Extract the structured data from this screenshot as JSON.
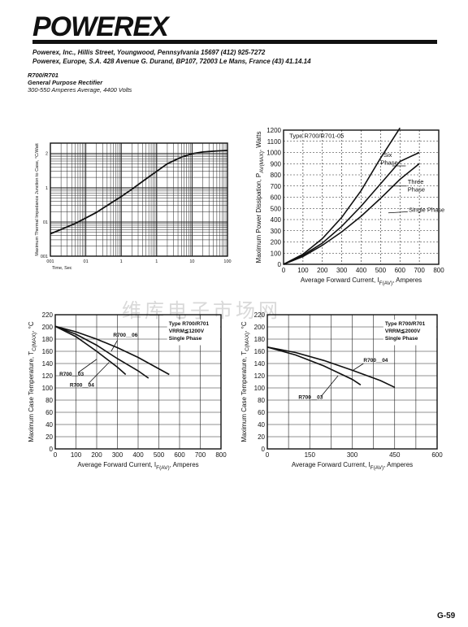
{
  "header": {
    "logo_text": "POWEREX",
    "address_us": "Powerex, Inc., Hillis Street, Youngwood, Pennsylvania 15697 (412) 925-7272",
    "address_eu": "Powerex, Europe, S.A. 428 Avenue G. Durand, BP107, 72003 Le Mans, France (43) 41.14.14"
  },
  "product": {
    "part": "R700/R701",
    "name": "General Purpose Rectifier",
    "rating": "300-550 Amperes Average, 4400 Volts"
  },
  "watermark": "维库电子市场网",
  "page_number": "G-59",
  "chart_data": [
    {
      "id": "thermal",
      "type": "line",
      "xscale": "log",
      "yscale": "log",
      "xlabel": "Time, Sec",
      "ylabel": "Maximum Thermal Impedance Junction to Case, °C/Watt",
      "xlim": [
        0.001,
        100
      ],
      "ylim": [
        0.001,
        2
      ],
      "xticks": [
        "001",
        "01",
        "1",
        "1",
        "10",
        "100"
      ],
      "xtick_values": [
        0.001,
        0.01,
        0.1,
        1,
        10,
        100
      ],
      "yticks": [
        "001",
        "01",
        "1",
        "2"
      ],
      "ytick_values": [
        0.001,
        0.01,
        0.1,
        1
      ],
      "series": [
        {
          "x": [
            0.001,
            0.002,
            0.005,
            0.01,
            0.02,
            0.05,
            0.1,
            0.2,
            0.5,
            1,
            2,
            5,
            10,
            20,
            50,
            100
          ],
          "y": [
            0.0045,
            0.006,
            0.009,
            0.013,
            0.019,
            0.035,
            0.055,
            0.09,
            0.18,
            0.3,
            0.5,
            0.78,
            0.98,
            1.1,
            1.18,
            1.22
          ]
        }
      ]
    },
    {
      "id": "power",
      "type": "line",
      "xlabel": "Average Forward Current, I",
      "xlabel_sub": "F(AV)",
      "xlabel_tail": ", Amperes",
      "ylabel": "Maximum Power Dissipation, P",
      "ylabel_sub": "AV(MAX)",
      "ylabel_tail": ", Watts",
      "xlim": [
        0,
        800
      ],
      "ylim": [
        0,
        1200
      ],
      "xticks": [
        0,
        100,
        200,
        300,
        400,
        500,
        600,
        700,
        800
      ],
      "yticks": [
        0,
        100,
        200,
        300,
        400,
        500,
        600,
        700,
        800,
        900,
        1000,
        1100,
        1200
      ],
      "type_label": "Type R700/R701-05",
      "annotations": [
        "Six",
        "Phase",
        "Three",
        "Phase",
        "Single Phase"
      ],
      "series": [
        {
          "name": "Six Phase",
          "x": [
            0,
            100,
            200,
            300,
            400,
            500,
            600
          ],
          "y": [
            0,
            90,
            230,
            420,
            660,
            950,
            1220
          ]
        },
        {
          "name": "Three Phase",
          "x": [
            0,
            100,
            200,
            300,
            400,
            500,
            600,
            700
          ],
          "y": [
            0,
            80,
            190,
            340,
            520,
            720,
            920,
            1000
          ]
        },
        {
          "name": "Single Phase",
          "x": [
            0,
            100,
            200,
            300,
            400,
            500,
            600,
            700
          ],
          "y": [
            0,
            70,
            170,
            290,
            430,
            590,
            760,
            900
          ]
        }
      ]
    },
    {
      "id": "case1200",
      "type": "line",
      "xlabel": "Average Forward Current, I",
      "xlabel_sub": "F(AV)",
      "xlabel_tail": ", Amperes",
      "ylabel": "Maximum Case Temperature, T",
      "ylabel_sub": "C(MAX)",
      "ylabel_tail": ", °C",
      "xlim": [
        0,
        800
      ],
      "ylim": [
        0,
        220
      ],
      "xticks": [
        0,
        100,
        200,
        300,
        400,
        500,
        600,
        700,
        800
      ],
      "yticks": [
        0,
        20,
        40,
        60,
        80,
        100,
        120,
        140,
        160,
        180,
        200,
        220
      ],
      "legend_lines": [
        "Type R700/R701",
        "VRRM≦1200V",
        "Single Phase"
      ],
      "labels": [
        "R700__06",
        "R700__03",
        "R700__04"
      ],
      "series": [
        {
          "name": "R700__06",
          "x": [
            0,
            100,
            200,
            300,
            400,
            550
          ],
          "y": [
            201,
            192,
            180,
            166,
            150,
            122
          ]
        },
        {
          "name": "R700__04",
          "x": [
            0,
            100,
            200,
            300,
            400,
            450
          ],
          "y": [
            201,
            188,
            170,
            148,
            128,
            116
          ]
        },
        {
          "name": "R700__03",
          "x": [
            0,
            100,
            200,
            300,
            340
          ],
          "y": [
            201,
            184,
            160,
            134,
            122
          ]
        }
      ]
    },
    {
      "id": "case2000",
      "type": "line",
      "xlabel": "Average Forward Current, I",
      "xlabel_sub": "F(AV)",
      "xlabel_tail": ", Amperes",
      "ylabel": "Maximum Case Temperature, T",
      "ylabel_sub": "C(MAX)",
      "ylabel_tail": ", °C",
      "xlim": [
        0,
        600
      ],
      "ylim": [
        0,
        220
      ],
      "xticks": [
        0,
        150,
        300,
        450,
        600
      ],
      "yticks": [
        0,
        20,
        40,
        60,
        80,
        100,
        120,
        140,
        160,
        180,
        200,
        220
      ],
      "legend_lines": [
        "Type R700/R701",
        "VRRM≦2000V",
        "Single Phase"
      ],
      "labels": [
        "R700__04",
        "R700__03"
      ],
      "series": [
        {
          "name": "R700__04",
          "x": [
            0,
            100,
            200,
            300,
            400,
            450
          ],
          "y": [
            167,
            158,
            145,
            129,
            112,
            101
          ]
        },
        {
          "name": "R700__03",
          "x": [
            0,
            100,
            200,
            300,
            330
          ],
          "y": [
            167,
            154,
            136,
            114,
            105
          ]
        }
      ]
    }
  ]
}
